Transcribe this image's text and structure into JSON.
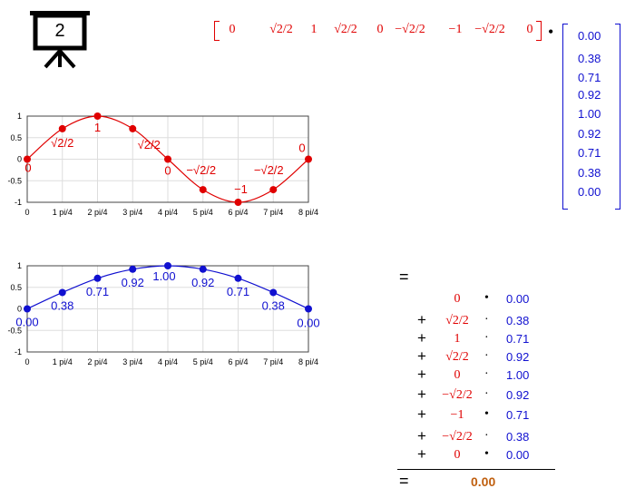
{
  "slide_badge": "2",
  "row_vector": [
    "0",
    "√2/2",
    "1",
    "√2/2",
    "0",
    "−√2/2",
    "−1",
    "−√2/2",
    "0"
  ],
  "column_vector": [
    "0.00",
    "0.38",
    "0.71",
    "0.92",
    "1.00",
    "0.92",
    "0.71",
    "0.38",
    "0.00"
  ],
  "dot_symbol": "•",
  "equals": "=",
  "sum_rows": [
    {
      "op": "",
      "left": "0",
      "dot": "•",
      "right": "0.00"
    },
    {
      "op": "+",
      "left": "√2/2",
      "dot": "·",
      "right": "0.38"
    },
    {
      "op": "+",
      "left": "1",
      "dot": "·",
      "right": "0.71"
    },
    {
      "op": "+",
      "left": "√2/2",
      "dot": "·",
      "right": "0.92"
    },
    {
      "op": "+",
      "left": "0",
      "dot": "·",
      "right": "1.00"
    },
    {
      "op": "+",
      "left": "−√2/2",
      "dot": "·",
      "right": "0.92"
    },
    {
      "op": "+",
      "left": "−1",
      "dot": "•",
      "right": "0.71"
    },
    {
      "op": "+",
      "left": "−√2/2",
      "dot": "·",
      "right": "0.38"
    },
    {
      "op": "+",
      "left": "0",
      "dot": "•",
      "right": "0.00"
    }
  ],
  "result": "0.00",
  "colors": {
    "red": "#e00000",
    "blue": "#1010d0",
    "result": "#c06010"
  },
  "chart_data": [
    {
      "type": "line",
      "x_ticks": [
        "0",
        "1 pi/4",
        "2 pi/4",
        "3 pi/4",
        "4 pi/4",
        "5 pi/4",
        "6 pi/4",
        "7 pi/4",
        "8 pi/4"
      ],
      "y_ticks": [
        "1",
        "0.5",
        "0",
        "-0.5",
        "-1"
      ],
      "ylim": [
        -1,
        1
      ],
      "grid": true,
      "points": [
        0,
        0.7071,
        1,
        0.7071,
        0,
        -0.7071,
        -1,
        -0.7071,
        0
      ],
      "point_labels": [
        "0",
        "√2/2",
        "1",
        "√2/2",
        "0",
        "−√2/2",
        "−1",
        "−√2/2",
        "0"
      ],
      "color": "#e00000"
    },
    {
      "type": "line",
      "x_ticks": [
        "0",
        "1 pi/4",
        "2 pi/4",
        "3 pi/4",
        "4 pi/4",
        "5 pi/4",
        "6 pi/4",
        "7 pi/4",
        "8 pi/4"
      ],
      "y_ticks": [
        "1",
        "0.5",
        "0",
        "-0.5",
        "-1"
      ],
      "ylim": [
        -1,
        1
      ],
      "grid": true,
      "points": [
        0,
        0.38,
        0.71,
        0.92,
        1.0,
        0.92,
        0.71,
        0.38,
        0
      ],
      "point_labels": [
        "0.00",
        "0.38",
        "0.71",
        "0.92",
        "1.00",
        "0.92",
        "0.71",
        "0.38",
        "0.00"
      ],
      "color": "#1010d0"
    }
  ]
}
